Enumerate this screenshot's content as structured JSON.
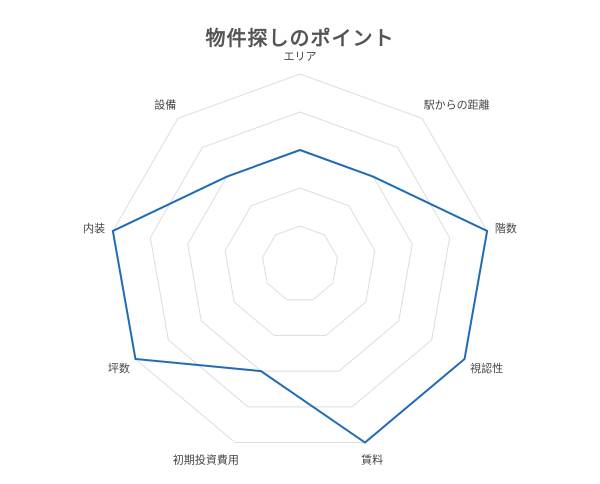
{
  "chart_data": {
    "type": "radar",
    "title": "物件探しのポイント",
    "categories": [
      "エリア",
      "駅からの距離",
      "階数",
      "視認性",
      "賃料",
      "初期投資費用",
      "坪数",
      "内装",
      "設備"
    ],
    "series": [
      {
        "values": [
          3,
          3,
          5,
          5,
          5,
          3,
          5,
          5,
          3
        ]
      }
    ],
    "rlim": [
      0,
      5
    ],
    "grid_levels": 5,
    "colors": {
      "series": "#1f6bb5",
      "grid": "#dddddd"
    }
  }
}
